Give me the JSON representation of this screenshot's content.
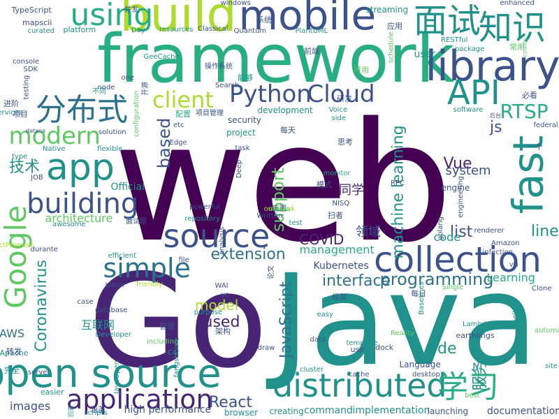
{
  "palette": {
    "dark_purple": "#440154",
    "deep_purple": "#482475",
    "indigo": "#3b528b",
    "blue": "#2c728e",
    "teal": "#21918c",
    "green_teal": "#28ae80",
    "green": "#5ec962",
    "lime": "#addc30",
    "yellow": "#fde725"
  },
  "words": [
    {
      "text": "web",
      "c": "dark_purple",
      "r": 0
    },
    {
      "text": "framework",
      "c": "green_teal",
      "r": 0
    },
    {
      "text": "Go",
      "c": "deep_purple",
      "r": 0
    },
    {
      "text": "Java",
      "c": "teal",
      "r": 0
    },
    {
      "text": "build",
      "c": "lime",
      "r": 0
    },
    {
      "text": "mobile",
      "c": "indigo",
      "r": 0
    },
    {
      "text": "面试",
      "c": "teal",
      "r": 0
    },
    {
      "text": "知识",
      "c": "teal",
      "r": 0
    },
    {
      "text": "library",
      "c": "indigo",
      "r": 0
    },
    {
      "text": "using",
      "c": "green_teal",
      "r": 0
    },
    {
      "text": "app",
      "c": "teal",
      "r": 0
    },
    {
      "text": "API",
      "c": "teal",
      "r": 0
    },
    {
      "text": "分布式",
      "c": "blue",
      "r": 0
    },
    {
      "text": "client",
      "c": "lime",
      "r": 0
    },
    {
      "text": "Python",
      "c": "indigo",
      "r": 0
    },
    {
      "text": "Cloud",
      "c": "indigo",
      "r": 0
    },
    {
      "text": "fast",
      "c": "teal",
      "r": 270
    },
    {
      "text": "RTSP",
      "c": "green_teal",
      "r": 0
    },
    {
      "text": "modern",
      "c": "green",
      "r": 0
    },
    {
      "text": "building",
      "c": "indigo",
      "r": 0
    },
    {
      "text": "source",
      "c": "indigo",
      "r": 0
    },
    {
      "text": "collection",
      "c": "indigo",
      "r": 0
    },
    {
      "text": "simple",
      "c": "blue",
      "r": 0
    },
    {
      "text": "Google",
      "c": "green",
      "r": 270
    },
    {
      "text": "open source",
      "c": "teal",
      "r": 0
    },
    {
      "text": "distributed",
      "c": "teal",
      "r": 0
    },
    {
      "text": "学习",
      "c": "green_teal",
      "r": 0
    },
    {
      "text": "application",
      "c": "deep_purple",
      "r": 0
    },
    {
      "text": "React",
      "c": "indigo",
      "r": 0
    },
    {
      "text": "programming",
      "c": "blue",
      "r": 0
    },
    {
      "text": "interface",
      "c": "blue",
      "r": 0
    },
    {
      "text": "JavaScript",
      "c": "blue",
      "r": 270
    },
    {
      "text": "extension",
      "c": "blue",
      "r": 0
    },
    {
      "text": "COVID",
      "c": "deep_purple",
      "r": 0
    },
    {
      "text": "machine learning",
      "c": "teal",
      "r": 270
    },
    {
      "text": "Vue",
      "c": "deep_purple",
      "r": 0
    },
    {
      "text": "js",
      "c": "indigo",
      "r": 0
    },
    {
      "text": "system",
      "c": "indigo",
      "r": 0
    },
    {
      "text": "Coronavirus",
      "c": "teal",
      "r": 270
    },
    {
      "text": "model",
      "c": "lime",
      "r": 0
    },
    {
      "text": "used",
      "c": "deep_purple",
      "r": 0
    },
    {
      "text": "de",
      "c": "teal",
      "r": 0
    },
    {
      "text": "服务",
      "c": "teal",
      "r": 270
    },
    {
      "text": "技术",
      "c": "teal",
      "r": 0
    },
    {
      "text": "support",
      "c": "green",
      "r": 270
    },
    {
      "text": "based",
      "c": "indigo",
      "r": 270
    },
    {
      "text": "list",
      "c": "indigo",
      "r": 0
    },
    {
      "text": "line",
      "c": "teal",
      "r": 0
    },
    {
      "text": "code",
      "c": "teal",
      "r": 0
    },
    {
      "text": "management",
      "c": "green_teal",
      "r": 0
    },
    {
      "text": "images",
      "c": "indigo",
      "r": 0
    },
    {
      "text": "architecture",
      "c": "green",
      "r": 0
    },
    {
      "text": "同学",
      "c": "deep_purple",
      "r": 0
    },
    {
      "text": "Learning",
      "c": "green_teal",
      "r": 0
    },
    {
      "text": "领域",
      "c": "indigo",
      "r": 0
    },
    {
      "text": "互联网",
      "c": "teal",
      "r": 0
    },
    {
      "text": "AWS",
      "c": "blue",
      "r": 0
    },
    {
      "text": "command",
      "c": "teal",
      "r": 0
    },
    {
      "text": "implementation",
      "c": "teal",
      "r": 0
    },
    {
      "text": "documentation",
      "c": "indigo",
      "r": 0
    },
    {
      "text": "high performance",
      "c": "indigo",
      "r": 0
    },
    {
      "text": "browser",
      "c": "teal",
      "r": 0
    },
    {
      "text": "creating",
      "c": "teal",
      "r": 0
    },
    {
      "text": "launching",
      "c": "indigo",
      "r": 0
    },
    {
      "text": "Kubernetes",
      "c": "indigo",
      "r": 0
    },
    {
      "text": "security",
      "c": "indigo",
      "r": 0
    },
    {
      "text": "project",
      "c": "teal",
      "r": 0
    },
    {
      "text": "development",
      "c": "teal",
      "r": 0
    },
    {
      "text": "Official",
      "c": "teal",
      "r": 0
    },
    {
      "text": "engine",
      "c": "indigo",
      "r": 0
    },
    {
      "text": "user",
      "c": "teal",
      "r": 0
    },
    {
      "text": "platform",
      "c": "teal",
      "r": 0
    },
    {
      "text": "streaming",
      "c": "teal",
      "r": 0
    },
    {
      "text": "enhanced",
      "c": "indigo",
      "r": 0
    },
    {
      "text": "TypeScript",
      "c": "indigo",
      "r": 0
    },
    {
      "text": "mapscii",
      "c": "indigo",
      "r": 0
    },
    {
      "text": "curated",
      "c": "teal",
      "r": 0
    },
    {
      "text": "windows",
      "c": "indigo",
      "r": 0
    },
    {
      "text": "PlantUML",
      "c": "teal",
      "r": 0
    },
    {
      "text": "Quantum",
      "c": "indigo",
      "r": 0
    },
    {
      "text": "resources",
      "c": "teal",
      "r": 0
    },
    {
      "text": "RESTful",
      "c": "teal",
      "r": 0
    },
    {
      "text": "package",
      "c": "teal",
      "r": 0
    },
    {
      "text": "software",
      "c": "teal",
      "r": 0
    },
    {
      "text": "monitor",
      "c": "green_teal",
      "r": 0
    },
    {
      "text": "Voice",
      "c": "teal",
      "r": 0
    },
    {
      "text": "solution",
      "c": "indigo",
      "r": 0
    },
    {
      "text": "flexible",
      "c": "teal",
      "r": 0
    },
    {
      "text": "Native",
      "c": "teal",
      "r": 0
    },
    {
      "text": "Linux",
      "c": "indigo",
      "r": 0
    },
    {
      "text": "powerful",
      "c": "indigo",
      "r": 0
    },
    {
      "text": "repository",
      "c": "teal",
      "r": 0
    },
    {
      "text": "awesome",
      "c": "teal",
      "r": 0
    },
    {
      "text": "efficient",
      "c": "teal",
      "r": 0
    },
    {
      "text": "Written",
      "c": "indigo",
      "r": 0
    },
    {
      "text": "server",
      "c": "indigo",
      "r": 0
    },
    {
      "text": "file",
      "c": "indigo",
      "r": 0
    },
    {
      "text": "friendly",
      "c": "lime",
      "r": 0
    },
    {
      "text": "case",
      "c": "indigo",
      "r": 0
    },
    {
      "text": "database",
      "c": "indigo",
      "r": 0
    },
    {
      "text": "Developer",
      "c": "teal",
      "r": 0
    },
    {
      "text": "easy",
      "c": "teal",
      "r": 0
    },
    {
      "text": "template",
      "c": "teal",
      "r": 0
    },
    {
      "text": "cluster",
      "c": "teal",
      "r": 0
    },
    {
      "text": "cache",
      "c": "indigo",
      "r": 0
    },
    {
      "text": "desktop",
      "c": "indigo",
      "r": 0
    },
    {
      "text": "Language",
      "c": "indigo",
      "r": 0
    },
    {
      "text": "best",
      "c": "green",
      "r": 0
    },
    {
      "text": "data",
      "c": "indigo",
      "r": 0
    },
    {
      "text": "toolkit",
      "c": "teal",
      "r": 270
    },
    {
      "text": "Apache",
      "c": "teal",
      "r": 0
    },
    {
      "text": "easier",
      "c": "teal",
      "r": 0
    },
    {
      "text": "task",
      "c": "indigo",
      "r": 0
    },
    {
      "text": "etc",
      "c": "indigo",
      "r": 0
    },
    {
      "text": "Edge",
      "c": "indigo",
      "r": 0
    },
    {
      "text": "Deep",
      "c": "indigo",
      "r": 270
    },
    {
      "text": "JOB",
      "c": "indigo",
      "r": 0
    },
    {
      "text": "test",
      "c": "teal",
      "r": 0
    },
    {
      "text": "golang",
      "c": "indigo",
      "r": 270
    },
    {
      "text": "purpose",
      "c": "teal",
      "r": 0
    },
    {
      "text": "C4",
      "c": "teal",
      "r": 0
    },
    {
      "text": "node",
      "c": "indigo",
      "r": 0
    },
    {
      "text": "one",
      "c": "indigo",
      "r": 0
    },
    {
      "text": "Search",
      "c": "indigo",
      "r": 0
    },
    {
      "text": "configuration",
      "c": "green",
      "r": 270
    },
    {
      "text": "engineering",
      "c": "indigo",
      "r": 270
    },
    {
      "text": "testing",
      "c": "indigo",
      "r": 270
    },
    {
      "text": "console",
      "c": "indigo",
      "r": 0
    },
    {
      "text": "Services",
      "c": "teal",
      "r": 0
    },
    {
      "text": "type",
      "c": "teal",
      "r": 0
    },
    {
      "text": "use",
      "c": "indigo",
      "r": 0
    },
    {
      "text": "dock",
      "c": "indigo",
      "r": 0
    },
    {
      "text": "earthlings",
      "c": "indigo",
      "r": 0
    },
    {
      "text": "管理",
      "c": "indigo",
      "r": 0
    },
    {
      "text": "转发",
      "c": "indigo",
      "r": 0
    },
    {
      "text": "涵盖",
      "c": "indigo",
      "r": 0
    },
    {
      "text": "框架",
      "c": "indigo",
      "r": 0
    },
    {
      "text": "架构",
      "c": "indigo",
      "r": 0
    },
    {
      "text": "扫者",
      "c": "indigo",
      "r": 0
    },
    {
      "text": "进阶",
      "c": "indigo",
      "r": 0
    },
    {
      "text": "项目",
      "c": "indigo",
      "r": 0
    },
    {
      "text": "配置",
      "c": "green_teal",
      "r": 0
    },
    {
      "text": "研发",
      "c": "indigo",
      "r": 0
    },
    {
      "text": "思考",
      "c": "indigo",
      "r": 0
    },
    {
      "text": "每天",
      "c": "indigo",
      "r": 0
    },
    {
      "text": "必看",
      "c": "indigo",
      "r": 0
    },
    {
      "text": "一个",
      "c": "indigo",
      "r": 0
    },
    {
      "text": "可用",
      "c": "green",
      "r": 0
    },
    {
      "text": "前端",
      "c": "indigo",
      "r": 0
    },
    {
      "text": "系统",
      "c": "indigo",
      "r": 0
    },
    {
      "text": "应用",
      "c": "indigo",
      "r": 0
    },
    {
      "text": "完全",
      "c": "teal",
      "r": 0
    },
    {
      "text": "模式",
      "c": "indigo",
      "r": 0
    },
    {
      "text": "能够",
      "c": "teal",
      "r": 0
    },
    {
      "text": "每日",
      "c": "indigo",
      "r": 0
    },
    {
      "text": "常用",
      "c": "green",
      "r": 0
    },
    {
      "text": "并发",
      "c": "indigo",
      "r": 0
    },
    {
      "text": "开源",
      "c": "indigo",
      "r": 270
    },
    {
      "text": "不同",
      "c": "teal",
      "r": 0
    },
    {
      "text": "Day",
      "c": "teal",
      "r": 0
    },
    {
      "text": "Classical",
      "c": "indigo",
      "r": 0
    },
    {
      "text": "GeeCache",
      "c": "teal",
      "r": 0
    },
    {
      "text": "SDK",
      "c": "indigo",
      "r": 0
    },
    {
      "text": "操作系统",
      "c": "indigo",
      "r": 0
    },
    {
      "text": "schedule",
      "c": "green",
      "r": 270
    },
    {
      "text": "county",
      "c": "green",
      "r": 270
    },
    {
      "text": "federal",
      "c": "indigo",
      "r": 0
    },
    {
      "text": "side",
      "c": "teal",
      "r": 0
    },
    {
      "text": "项目管理",
      "c": "indigo",
      "r": 0
    },
    {
      "text": "NISQ",
      "c": "indigo",
      "r": 0
    },
    {
      "text": "RPC",
      "c": "indigo",
      "r": 0
    },
    {
      "text": "datana",
      "c": "indigo",
      "r": 0
    },
    {
      "text": "面试题",
      "c": "indigo",
      "r": 0
    },
    {
      "text": "analysis",
      "c": "indigo",
      "r": 270
    },
    {
      "text": "ReactPromise",
      "c": "lime",
      "r": 0
    },
    {
      "text": "durante",
      "c": "indigo",
      "r": 0
    },
    {
      "text": "WAI",
      "c": "indigo",
      "r": 0
    },
    {
      "text": "ve",
      "c": "indigo",
      "r": 0
    },
    {
      "text": "论文",
      "c": "indigo",
      "r": 270
    },
    {
      "text": "including",
      "c": "green",
      "r": 0
    },
    {
      "text": "draw",
      "c": "indigo",
      "r": 0
    },
    {
      "text": "Baselines",
      "c": "teal",
      "r": 270
    },
    {
      "text": "Single",
      "c": "green",
      "r": 0
    },
    {
      "text": "Amazon",
      "c": "indigo",
      "r": 0
    },
    {
      "text": "infection",
      "c": "indigo",
      "r": 0
    },
    {
      "text": "renderer",
      "c": "indigo",
      "r": 0
    },
    {
      "text": "Clone",
      "c": "indigo",
      "r": 0
    },
    {
      "text": "Lambda",
      "c": "teal",
      "r": 0
    },
    {
      "text": "automate",
      "c": "green",
      "r": 0
    },
    {
      "text": "site",
      "c": "teal",
      "r": 0
    },
    {
      "text": "Reality",
      "c": "green",
      "r": 0
    },
    {
      "text": "fangsHome",
      "c": "teal",
      "r": 270
    },
    {
      "text": "JavaOpen",
      "c": "teal",
      "r": 270
    },
    {
      "text": "回溯",
      "c": "teal",
      "r": 270
    },
    {
      "text": "scripts",
      "c": "teal",
      "r": 0
    },
    {
      "text": "VM",
      "c": "indigo",
      "r": 0
    },
    {
      "text": "后台",
      "c": "indigo",
      "r": 0
    },
    {
      "text": "outbreak",
      "c": "lime",
      "r": 0
    },
    {
      "text": "画图",
      "c": "indigo",
      "r": 0
    },
    {
      "text": "riques",
      "c": "green",
      "r": 0
    }
  ]
}
